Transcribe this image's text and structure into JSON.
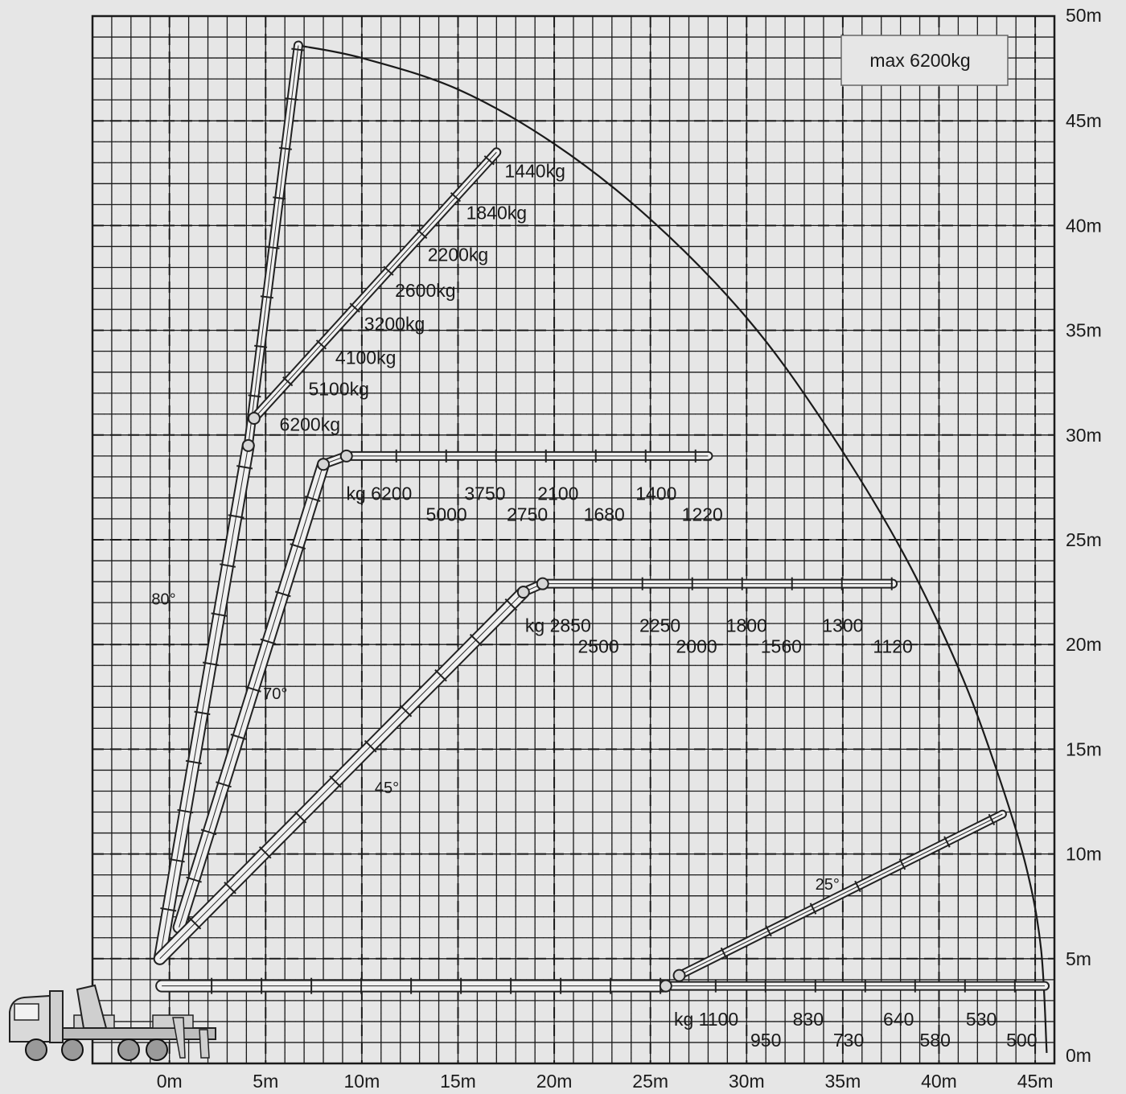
{
  "chart_data": {
    "type": "load-chart",
    "title": "",
    "xlabel": "",
    "ylabel": "",
    "xlim": [
      -4,
      46
    ],
    "ylim": [
      0,
      50
    ],
    "x_ticks": [
      "0m",
      "5m",
      "10m",
      "15m",
      "20m",
      "25m",
      "30m",
      "35m",
      "40m",
      "45m"
    ],
    "y_ticks": [
      "0m",
      "5m",
      "10m",
      "15m",
      "20m",
      "25m",
      "30m",
      "35m",
      "40m",
      "45m",
      "50m"
    ],
    "grid": true,
    "max_label": "max 6200kg",
    "envelope": [
      [
        6.7,
        48.6
      ],
      [
        10,
        48.0
      ],
      [
        15,
        46.5
      ],
      [
        20,
        43.9
      ],
      [
        25,
        40.3
      ],
      [
        30,
        35.6
      ],
      [
        34,
        30.6
      ],
      [
        38,
        24.6
      ],
      [
        41,
        18.9
      ],
      [
        43,
        14.0
      ],
      [
        44.5,
        9.5
      ],
      [
        45.3,
        5.5
      ],
      [
        45.6,
        0.5
      ]
    ],
    "booms": [
      {
        "angle_label": "80°",
        "angle_pos": [
          -0.3,
          21.9
        ],
        "path": [
          [
            -0.5,
            5
          ],
          [
            4.1,
            29.5
          ],
          [
            6.7,
            48.6
          ]
        ]
      },
      {
        "angle_label": "70°",
        "angle_pos": [
          5.5,
          17.4
        ],
        "path": [
          [
            0.5,
            6.5
          ],
          [
            8.0,
            28.6
          ],
          [
            9.2,
            29.0
          ],
          [
            28.0,
            29.0
          ]
        ]
      },
      {
        "angle_label": "45°",
        "angle_pos": [
          11.3,
          12.9
        ],
        "path": [
          [
            -0.5,
            5
          ],
          [
            18.4,
            22.5
          ],
          [
            19.4,
            22.9
          ],
          [
            37.6,
            22.9
          ]
        ]
      },
      {
        "angle_label": "25°",
        "angle_pos": [
          34.2,
          8.3
        ],
        "path": [
          [
            -0.4,
            3.7
          ],
          [
            25.8,
            3.7
          ],
          [
            45.5,
            3.7
          ]
        ],
        "extension": [
          [
            26.5,
            4.2
          ],
          [
            43.3,
            11.9
          ]
        ]
      }
    ],
    "knuckle_boom": {
      "path": [
        [
          4.4,
          30.8
        ],
        [
          17.0,
          43.5
        ]
      ]
    },
    "capacity_labels": [
      {
        "text": "1440kg",
        "x": 19.0,
        "y": 42.3,
        "anchor": "middle"
      },
      {
        "text": "1840kg",
        "x": 17.0,
        "y": 40.3,
        "anchor": "middle"
      },
      {
        "text": "2200kg",
        "x": 15.0,
        "y": 38.3,
        "anchor": "middle"
      },
      {
        "text": "2600kg",
        "x": 13.3,
        "y": 36.6,
        "anchor": "middle"
      },
      {
        "text": "3200kg",
        "x": 11.7,
        "y": 35.0,
        "anchor": "middle"
      },
      {
        "text": "4100kg",
        "x": 10.2,
        "y": 33.4,
        "anchor": "middle"
      },
      {
        "text": "5100kg",
        "x": 8.8,
        "y": 31.9,
        "anchor": "middle"
      },
      {
        "text": "6200kg",
        "x": 7.3,
        "y": 30.2,
        "anchor": "middle"
      },
      {
        "text": "kg 6200",
        "x": 10.9,
        "y": 26.9,
        "anchor": "middle"
      },
      {
        "text": "5000",
        "x": 14.4,
        "y": 25.9,
        "anchor": "middle"
      },
      {
        "text": "3750",
        "x": 16.4,
        "y": 26.9,
        "anchor": "middle"
      },
      {
        "text": "2750",
        "x": 18.6,
        "y": 25.9,
        "anchor": "middle"
      },
      {
        "text": "2100",
        "x": 20.2,
        "y": 26.9,
        "anchor": "middle"
      },
      {
        "text": "1680",
        "x": 22.6,
        "y": 25.9,
        "anchor": "middle"
      },
      {
        "text": "1400",
        "x": 25.3,
        "y": 26.9,
        "anchor": "middle"
      },
      {
        "text": "1220",
        "x": 27.7,
        "y": 25.9,
        "anchor": "middle"
      },
      {
        "text": "kg 2850",
        "x": 20.2,
        "y": 20.6,
        "anchor": "middle"
      },
      {
        "text": "2500",
        "x": 22.3,
        "y": 19.6,
        "anchor": "middle"
      },
      {
        "text": "2250",
        "x": 25.5,
        "y": 20.6,
        "anchor": "middle"
      },
      {
        "text": "2000",
        "x": 27.4,
        "y": 19.6,
        "anchor": "middle"
      },
      {
        "text": "1800",
        "x": 30.0,
        "y": 20.6,
        "anchor": "middle"
      },
      {
        "text": "1560",
        "x": 31.8,
        "y": 19.6,
        "anchor": "middle"
      },
      {
        "text": "1300",
        "x": 35.0,
        "y": 20.6,
        "anchor": "middle"
      },
      {
        "text": "1120",
        "x": 37.6,
        "y": 19.6,
        "anchor": "middle"
      },
      {
        "text": "kg 1100",
        "x": 27.9,
        "y": 1.8,
        "anchor": "middle"
      },
      {
        "text": "950",
        "x": 31.0,
        "y": 0.8,
        "anchor": "middle"
      },
      {
        "text": "830",
        "x": 33.2,
        "y": 1.8,
        "anchor": "middle"
      },
      {
        "text": "730",
        "x": 35.3,
        "y": 0.8,
        "anchor": "middle"
      },
      {
        "text": "640",
        "x": 37.9,
        "y": 1.8,
        "anchor": "middle"
      },
      {
        "text": "580",
        "x": 39.8,
        "y": 0.8,
        "anchor": "middle"
      },
      {
        "text": "530",
        "x": 42.2,
        "y": 1.8,
        "anchor": "middle"
      },
      {
        "text": "500",
        "x": 44.3,
        "y": 0.8,
        "anchor": "middle"
      }
    ],
    "colors": {
      "background": "#e6e6e6",
      "grid": "#1a1a1a",
      "ink": "#1a1a1a",
      "boom": "#333333"
    }
  }
}
